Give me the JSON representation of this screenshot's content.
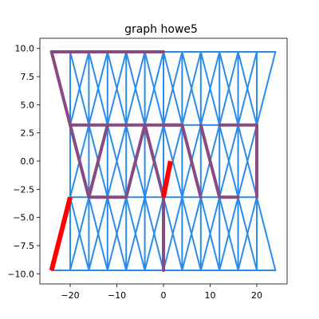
{
  "chart_data": {
    "type": "graph",
    "title": "graph howe5",
    "xlabel": "",
    "ylabel": "",
    "xlim": [
      -26.5,
      26.5
    ],
    "ylim": [
      -10.9,
      10.9
    ],
    "xticks": [
      -20,
      -10,
      0,
      10,
      20
    ],
    "xtick_labels": [
      "−20",
      "−10",
      "0",
      "10",
      "20"
    ],
    "yticks": [
      10.0,
      7.5,
      5.0,
      2.5,
      0.0,
      -2.5,
      -5.0,
      -7.5,
      -10.0
    ],
    "ytick_labels": [
      "10.0",
      "7.5",
      "5.0",
      "2.5",
      "0.0",
      "−2.5",
      "−5.0",
      "−7.5",
      "−10.0"
    ],
    "grid": false,
    "colors": {
      "base_edges": "#2a8bea",
      "path_edges": "#874b82",
      "highlight_edges": "#ff0000"
    },
    "rows": {
      "top": {
        "y": 9.7,
        "x": [
          -24,
          -20,
          -16,
          -12,
          -8,
          -4,
          0,
          4,
          8,
          12,
          16,
          20,
          24
        ]
      },
      "upper_mid": {
        "y": 3.2,
        "x": [
          -20,
          -16,
          -12,
          -8,
          -4,
          0,
          4,
          8,
          12,
          16,
          20
        ]
      },
      "lower_mid": {
        "y": -3.2,
        "x": [
          -20,
          -16,
          -12,
          -8,
          -4,
          0,
          4,
          8,
          12,
          16,
          20
        ]
      },
      "bottom": {
        "y": -9.7,
        "x": [
          -24,
          -20,
          -16,
          -12,
          -8,
          -4,
          0,
          4,
          8,
          12,
          16,
          20,
          24
        ]
      }
    },
    "purple_path": [
      [
        [
          -24,
          9.7
        ],
        [
          0,
          9.7
        ]
      ],
      [
        [
          -24,
          9.7
        ],
        [
          -20,
          3.2
        ]
      ],
      [
        [
          -20,
          3.2
        ],
        [
          -16,
          -3.2
        ]
      ],
      [
        [
          -20,
          3.2
        ],
        [
          -12,
          3.2
        ]
      ],
      [
        [
          -16,
          -3.2
        ],
        [
          -12,
          3.2
        ]
      ],
      [
        [
          -16,
          -3.2
        ],
        [
          -8,
          -3.2
        ]
      ],
      [
        [
          -8,
          -3.2
        ],
        [
          -4,
          3.2
        ]
      ],
      [
        [
          -4,
          3.2
        ],
        [
          -12,
          3.2
        ]
      ],
      [
        [
          -4,
          3.2
        ],
        [
          0,
          -3.2
        ]
      ],
      [
        [
          0,
          -3.2
        ],
        [
          0,
          -9.7
        ]
      ],
      [
        [
          4,
          3.2
        ],
        [
          0,
          3.2
        ]
      ],
      [
        [
          4,
          3.2
        ],
        [
          8,
          -3.2
        ]
      ],
      [
        [
          8,
          3.2
        ],
        [
          12,
          -3.2
        ]
      ],
      [
        [
          12,
          -3.2
        ],
        [
          16,
          -3.2
        ]
      ],
      [
        [
          12,
          3.2
        ],
        [
          20,
          3.2
        ]
      ],
      [
        [
          20,
          3.2
        ],
        [
          20,
          -3.2
        ]
      ],
      [
        [
          4,
          3.2
        ],
        [
          -4,
          3.2
        ]
      ]
    ],
    "red_edges": [
      [
        [
          -24,
          -9.7
        ],
        [
          -20,
          -3.2
        ]
      ],
      [
        [
          0,
          -3.2
        ],
        [
          1.5,
          0
        ]
      ]
    ]
  }
}
